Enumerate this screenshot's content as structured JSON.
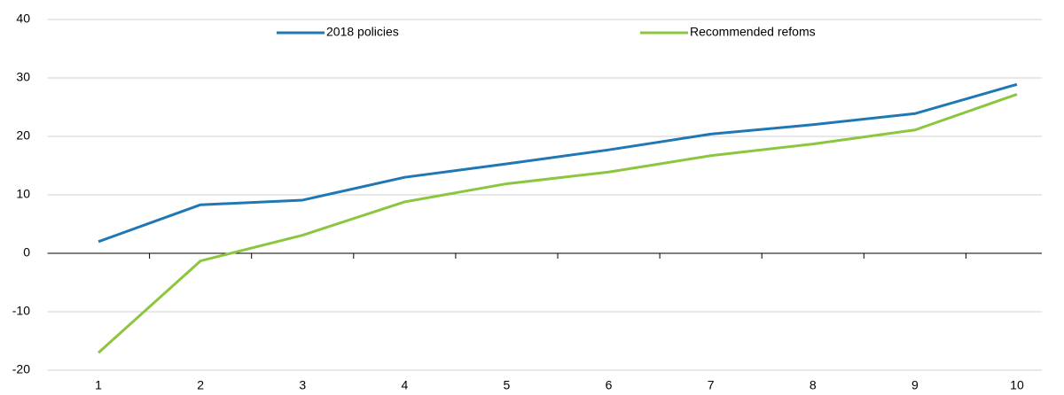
{
  "chart_data": {
    "type": "line",
    "categories": [
      "1",
      "2",
      "3",
      "4",
      "5",
      "6",
      "7",
      "8",
      "9",
      "10"
    ],
    "series": [
      {
        "name": "2018 policies",
        "color": "#1f78b4",
        "values": [
          2,
          8.3,
          9.1,
          13,
          15.3,
          17.7,
          20.4,
          22,
          23.9,
          28.9
        ]
      },
      {
        "name": "Recommended refoms",
        "color": "#8cc63f",
        "values": [
          -17,
          -1.3,
          3.1,
          8.8,
          11.9,
          13.9,
          16.7,
          18.7,
          21.1,
          27.2
        ]
      }
    ],
    "ylim": [
      -20,
      40
    ],
    "yticks": [
      -20,
      -10,
      0,
      10,
      20,
      30,
      40
    ],
    "grid": true,
    "legend": "top"
  }
}
